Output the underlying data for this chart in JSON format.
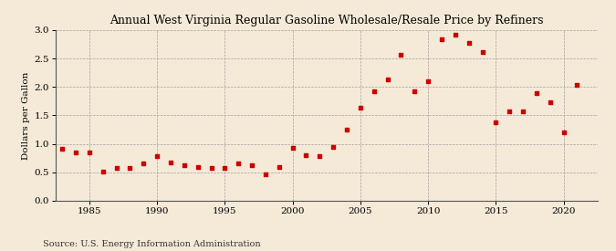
{
  "title": "Annual West Virginia Regular Gasoline Wholesale/Resale Price by Refiners",
  "ylabel": "Dollars per Gallon",
  "source": "Source: U.S. Energy Information Administration",
  "background_color": "#f5ead8",
  "marker_color": "#cc0000",
  "years": [
    1983,
    1984,
    1985,
    1986,
    1987,
    1988,
    1989,
    1990,
    1991,
    1992,
    1993,
    1994,
    1995,
    1996,
    1997,
    1998,
    1999,
    2000,
    2001,
    2002,
    2003,
    2004,
    2005,
    2006,
    2007,
    2008,
    2009,
    2010,
    2011,
    2012,
    2013,
    2014,
    2015,
    2016,
    2017,
    2018,
    2019,
    2020,
    2021
  ],
  "values": [
    0.92,
    0.85,
    0.85,
    0.52,
    0.57,
    0.57,
    0.65,
    0.78,
    0.68,
    0.63,
    0.6,
    0.57,
    0.58,
    0.65,
    0.62,
    0.47,
    0.6,
    0.93,
    0.8,
    0.79,
    0.95,
    1.25,
    1.63,
    1.93,
    2.14,
    2.57,
    1.93,
    2.1,
    2.84,
    2.92,
    2.78,
    2.62,
    1.38,
    1.58,
    1.57,
    1.89,
    1.74,
    1.2,
    2.04
  ],
  "xlim": [
    1982.5,
    2022.5
  ],
  "ylim": [
    0.0,
    3.0
  ],
  "yticks": [
    0.0,
    0.5,
    1.0,
    1.5,
    2.0,
    2.5,
    3.0
  ],
  "xticks": [
    1985,
    1990,
    1995,
    2000,
    2005,
    2010,
    2015,
    2020
  ],
  "figsize": [
    6.75,
    2.75
  ],
  "dpi": 100,
  "title_fontsize": 9,
  "axis_fontsize": 7.5,
  "source_fontsize": 7
}
